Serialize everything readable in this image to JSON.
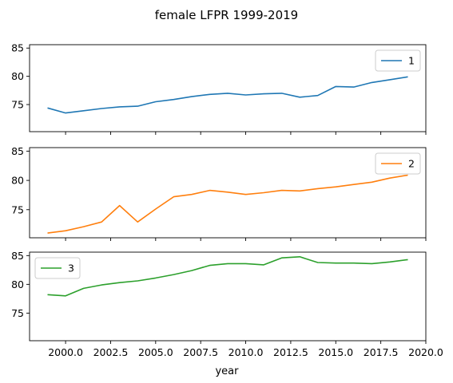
{
  "chart_data": {
    "type": "line",
    "title": "female LFPR 1999-2019",
    "xlabel": "year",
    "ylabel": "",
    "xlim": [
      1998.0,
      2020.0
    ],
    "ylim": [
      70.2,
      85.6
    ],
    "x_ticks": [
      2000.0,
      2002.5,
      2005.0,
      2007.5,
      2010.0,
      2012.5,
      2015.0,
      2017.5,
      2020.0
    ],
    "x_tick_labels": [
      "2000.0",
      "2002.5",
      "2005.0",
      "2007.5",
      "2010.0",
      "2012.5",
      "2015.0",
      "2017.5",
      "2020.0"
    ],
    "y_ticks": [
      75,
      80,
      85
    ],
    "y_tick_labels": [
      "75",
      "80",
      "85"
    ],
    "grid": false,
    "x": [
      1999,
      2000,
      2001,
      2002,
      2003,
      2004,
      2005,
      2006,
      2007,
      2008,
      2009,
      2010,
      2011,
      2012,
      2013,
      2014,
      2015,
      2016,
      2017,
      2018,
      2019
    ],
    "series": [
      {
        "name": "1",
        "color": "#1f77b4",
        "legend_position": "upper right",
        "values": [
          74.4,
          73.5,
          73.9,
          74.3,
          74.6,
          74.7,
          75.5,
          75.9,
          76.4,
          76.8,
          77.0,
          76.7,
          76.9,
          77.0,
          76.3,
          76.6,
          78.2,
          78.1,
          78.9,
          79.4,
          79.9
        ]
      },
      {
        "name": "2",
        "color": "#ff7f0e",
        "legend_position": "upper right",
        "values": [
          71.0,
          71.4,
          72.1,
          72.9,
          75.7,
          72.9,
          75.1,
          77.2,
          77.6,
          78.3,
          78.0,
          77.6,
          77.9,
          78.3,
          78.2,
          78.6,
          78.9,
          79.3,
          79.7,
          80.4,
          80.9
        ]
      },
      {
        "name": "3",
        "color": "#2ca02c",
        "legend_position": "upper left",
        "values": [
          78.2,
          78.0,
          79.3,
          79.9,
          80.3,
          80.6,
          81.1,
          81.7,
          82.4,
          83.3,
          83.6,
          83.6,
          83.4,
          84.6,
          84.8,
          83.8,
          83.7,
          83.7,
          83.6,
          83.9,
          84.3
        ]
      }
    ]
  }
}
